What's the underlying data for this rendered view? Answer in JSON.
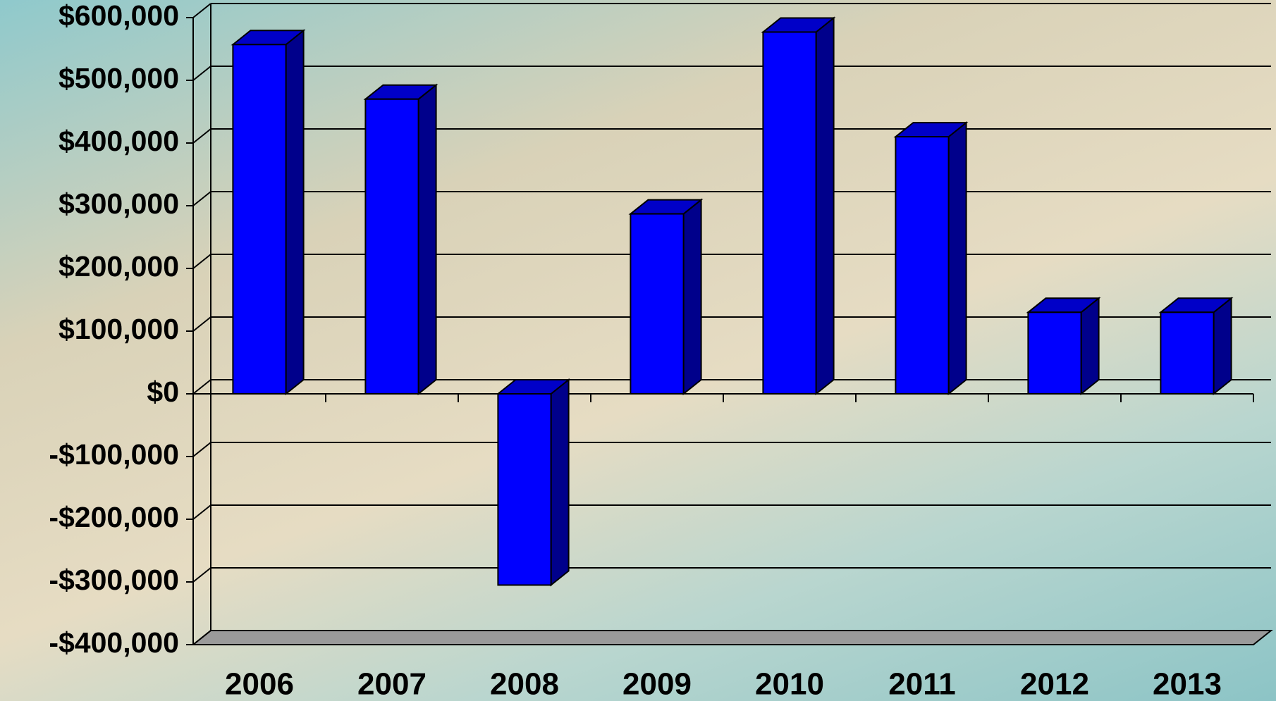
{
  "chart_data": {
    "type": "bar3d",
    "categories": [
      "2006",
      "2007",
      "2008",
      "2009",
      "2010",
      "2011",
      "2012",
      "2013"
    ],
    "values": [
      557000,
      470000,
      -305000,
      287000,
      577000,
      410000,
      130000,
      130000
    ],
    "color": "#0000ff",
    "ylim": [
      -400000,
      600000
    ],
    "yticks": [
      {
        "value": -400000,
        "label": "-$400,000"
      },
      {
        "value": -300000,
        "label": "-$300,000"
      },
      {
        "value": -200000,
        "label": "-$200,000"
      },
      {
        "value": -100000,
        "label": "-$100,000"
      },
      {
        "value": 0,
        "label": "$0"
      },
      {
        "value": 100000,
        "label": "$100,000"
      },
      {
        "value": 200000,
        "label": "$200,000"
      },
      {
        "value": 300000,
        "label": "$300,000"
      },
      {
        "value": 400000,
        "label": "$400,000"
      },
      {
        "value": 500000,
        "label": "$500,000"
      },
      {
        "value": 600000,
        "label": "$600,000"
      }
    ],
    "grid": true
  }
}
